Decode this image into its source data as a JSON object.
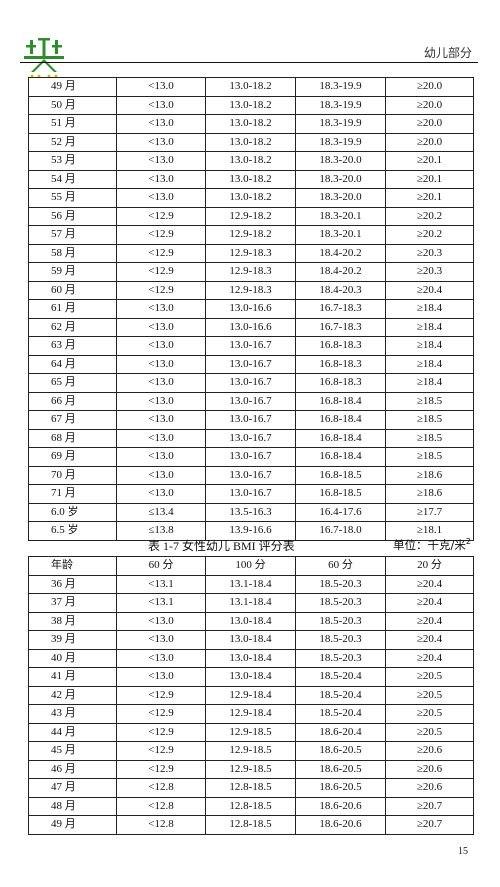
{
  "header": {
    "section_label": "幼儿部分"
  },
  "table1": {
    "rows": [
      [
        "49 月",
        "<13.0",
        "13.0-18.2",
        "18.3-19.9",
        "≥20.0"
      ],
      [
        "50 月",
        "<13.0",
        "13.0-18.2",
        "18.3-19.9",
        "≥20.0"
      ],
      [
        "51 月",
        "<13.0",
        "13.0-18.2",
        "18.3-19.9",
        "≥20.0"
      ],
      [
        "52 月",
        "<13.0",
        "13.0-18.2",
        "18.3-19.9",
        "≥20.0"
      ],
      [
        "53 月",
        "<13.0",
        "13.0-18.2",
        "18.3-20.0",
        "≥20.1"
      ],
      [
        "54 月",
        "<13.0",
        "13.0-18.2",
        "18.3-20.0",
        "≥20.1"
      ],
      [
        "55 月",
        "<13.0",
        "13.0-18.2",
        "18.3-20.0",
        "≥20.1"
      ],
      [
        "56 月",
        "<12.9",
        "12.9-18.2",
        "18.3-20.1",
        "≥20.2"
      ],
      [
        "57 月",
        "<12.9",
        "12.9-18.2",
        "18.3-20.1",
        "≥20.2"
      ],
      [
        "58 月",
        "<12.9",
        "12.9-18.3",
        "18.4-20.2",
        "≥20.3"
      ],
      [
        "59 月",
        "<12.9",
        "12.9-18.3",
        "18.4-20.2",
        "≥20.3"
      ],
      [
        "60 月",
        "<12.9",
        "12.9-18.3",
        "18.4-20.3",
        "≥20.4"
      ],
      [
        "61 月",
        "<13.0",
        "13.0-16.6",
        "16.7-18.3",
        "≥18.4"
      ],
      [
        "62 月",
        "<13.0",
        "13.0-16.6",
        "16.7-18.3",
        "≥18.4"
      ],
      [
        "63 月",
        "<13.0",
        "13.0-16.7",
        "16.8-18.3",
        "≥18.4"
      ],
      [
        "64 月",
        "<13.0",
        "13.0-16.7",
        "16.8-18.3",
        "≥18.4"
      ],
      [
        "65 月",
        "<13.0",
        "13.0-16.7",
        "16.8-18.3",
        "≥18.4"
      ],
      [
        "66 月",
        "<13.0",
        "13.0-16.7",
        "16.8-18.4",
        "≥18.5"
      ],
      [
        "67 月",
        "<13.0",
        "13.0-16.7",
        "16.8-18.4",
        "≥18.5"
      ],
      [
        "68 月",
        "<13.0",
        "13.0-16.7",
        "16.8-18.4",
        "≥18.5"
      ],
      [
        "69 月",
        "<13.0",
        "13.0-16.7",
        "16.8-18.4",
        "≥18.5"
      ],
      [
        "70 月",
        "<13.0",
        "13.0-16.7",
        "16.8-18.5",
        "≥18.6"
      ],
      [
        "71 月",
        "<13.0",
        "13.0-16.7",
        "16.8-18.5",
        "≥18.6"
      ],
      [
        "6.0 岁",
        "≤13.4",
        "13.5-16.3",
        "16.4-17.6",
        "≥17.7"
      ],
      [
        "6.5 岁",
        "≤13.8",
        "13.9-16.6",
        "16.7-18.0",
        "≥18.1"
      ]
    ]
  },
  "table2": {
    "caption": "表 1-7  女性幼儿 BMI 评分表",
    "unit": "单位：千克/米",
    "unit_sup": "2",
    "headers": [
      "年龄",
      "60 分",
      "100 分",
      "60 分",
      "20 分"
    ],
    "rows": [
      [
        "36 月",
        "<13.1",
        "13.1-18.4",
        "18.5-20.3",
        "≥20.4"
      ],
      [
        "37 月",
        "<13.1",
        "13.1-18.4",
        "18.5-20.3",
        "≥20.4"
      ],
      [
        "38 月",
        "<13.0",
        "13.0-18.4",
        "18.5-20.3",
        "≥20.4"
      ],
      [
        "39 月",
        "<13.0",
        "13.0-18.4",
        "18.5-20.3",
        "≥20.4"
      ],
      [
        "40 月",
        "<13.0",
        "13.0-18.4",
        "18.5-20.3",
        "≥20.4"
      ],
      [
        "41 月",
        "<13.0",
        "13.0-18.4",
        "18.5-20.4",
        "≥20.5"
      ],
      [
        "42 月",
        "<12.9",
        "12.9-18.4",
        "18.5-20.4",
        "≥20.5"
      ],
      [
        "43 月",
        "<12.9",
        "12.9-18.4",
        "18.5-20.4",
        "≥20.5"
      ],
      [
        "44 月",
        "<12.9",
        "12.9-18.5",
        "18.6-20.4",
        "≥20.5"
      ],
      [
        "45 月",
        "<12.9",
        "12.9-18.5",
        "18.6-20.5",
        "≥20.6"
      ],
      [
        "46 月",
        "<12.9",
        "12.9-18.5",
        "18.6-20.5",
        "≥20.6"
      ],
      [
        "47 月",
        "<12.8",
        "12.8-18.5",
        "18.6-20.5",
        "≥20.6"
      ],
      [
        "48 月",
        "<12.8",
        "12.8-18.5",
        "18.6-20.6",
        "≥20.7"
      ],
      [
        "49 月",
        "<12.8",
        "12.8-18.5",
        "18.6-20.6",
        "≥20.7"
      ]
    ]
  },
  "footer": {
    "page_number": "15"
  },
  "colors": {
    "logo_green": "#2e8b2e",
    "logo_yellow": "#d8b400",
    "rule": "#111111"
  }
}
